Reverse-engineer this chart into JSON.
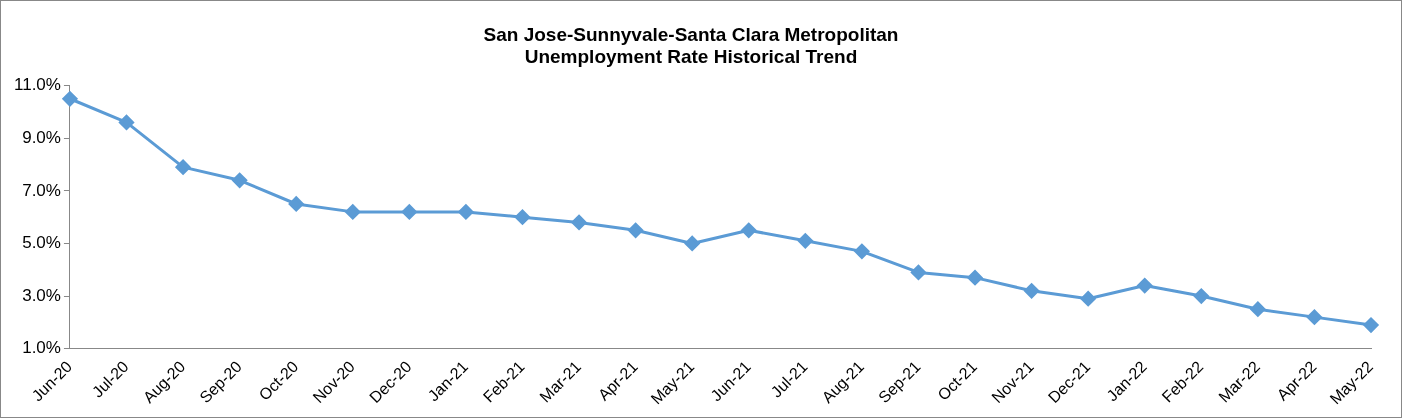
{
  "chart_data": {
    "type": "line",
    "title": "San Jose-Sunnyvale-Santa Clara Metropolitan\nUnemployment Rate Historical Trend",
    "categories": [
      "Jun-20",
      "Jul-20",
      "Aug-20",
      "Sep-20",
      "Oct-20",
      "Nov-20",
      "Dec-20",
      "Jan-21",
      "Feb-21",
      "Mar-21",
      "Apr-21",
      "May-21",
      "Jun-21",
      "Jul-21",
      "Aug-21",
      "Sep-21",
      "Oct-21",
      "Nov-21",
      "Dec-21",
      "Jan-22",
      "Feb-22",
      "Mar-22",
      "Apr-22",
      "May-22"
    ],
    "series": [
      {
        "color": "#5b9bd5",
        "values": [
          10.5,
          9.6,
          7.9,
          7.4,
          6.5,
          6.2,
          6.2,
          6.2,
          6.0,
          5.8,
          5.5,
          5.0,
          5.5,
          5.1,
          4.7,
          3.9,
          3.7,
          3.2,
          2.9,
          3.4,
          3.0,
          2.5,
          2.2,
          1.9
        ]
      }
    ],
    "ylim": [
      1,
      11
    ],
    "yticks": [
      {
        "value": 1,
        "label": "1.0%"
      },
      {
        "value": 3,
        "label": "3.0%"
      },
      {
        "value": 5,
        "label": "5.0%"
      },
      {
        "value": 7,
        "label": "7.0%"
      },
      {
        "value": 9,
        "label": "9.0%"
      },
      {
        "value": 11,
        "label": "11.0%"
      }
    ],
    "marker": "diamond",
    "line_style": "solid",
    "grid": false,
    "legend": false
  }
}
